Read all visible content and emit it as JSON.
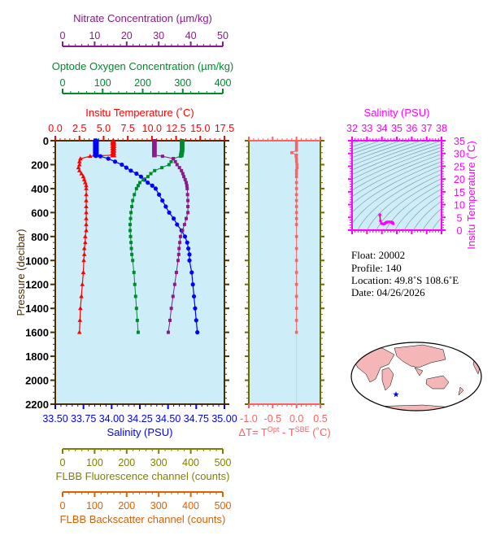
{
  "chart_data": [
    {
      "type": "line",
      "title": "",
      "ylabel": "Pressure (decibar)",
      "ylim": [
        0,
        2200
      ],
      "y_reversed": true,
      "yticks": [
        "0",
        "200",
        "400",
        "600",
        "800",
        "1000",
        "1200",
        "1400",
        "1600",
        "1800",
        "2000",
        "2200"
      ],
      "background": "#cdeef8",
      "pressure": [
        5,
        20,
        40,
        60,
        80,
        100,
        120,
        130,
        150,
        175,
        200,
        225,
        250,
        275,
        300,
        325,
        350,
        375,
        400,
        450,
        500,
        550,
        600,
        650,
        700,
        750,
        800,
        850,
        900,
        950,
        1000,
        1100,
        1200,
        1300,
        1400,
        1500,
        1600
      ],
      "axes": [
        {
          "key": "temp",
          "label": "Insitu Temperature (˚C)",
          "position": "top",
          "color": "#ff0000",
          "xlim": [
            0,
            17.5
          ],
          "ticks": [
            "0.0",
            "2.5",
            "5.0",
            "7.5",
            "10.0",
            "12.5",
            "15.0",
            "17.5"
          ]
        },
        {
          "key": "oxy",
          "label": "Optode Oxygen Concentration (µm/kg)",
          "position": "top-2",
          "color": "#008a2e",
          "xlim": [
            0,
            400
          ],
          "ticks": [
            "0",
            "100",
            "200",
            "300",
            "400"
          ]
        },
        {
          "key": "nit",
          "label": "Nitrate Concentration (µm/kg)",
          "position": "top-3",
          "color": "#8b1a8b",
          "xlim": [
            0,
            50
          ],
          "ticks": [
            "0",
            "10",
            "20",
            "30",
            "40",
            "50"
          ]
        },
        {
          "key": "sal",
          "label": "Salinity (PSU)",
          "position": "bottom",
          "color": "#0000ff",
          "xlim": [
            33.5,
            35.0
          ],
          "ticks": [
            "33.50",
            "33.75",
            "34.00",
            "34.25",
            "34.50",
            "34.75",
            "35.00"
          ]
        },
        {
          "key": "fluo",
          "label": "FLBB Fluorescence channel (counts)",
          "position": "bottom-2",
          "color": "#808000",
          "xlim": [
            0,
            500
          ],
          "ticks": [
            "0",
            "100",
            "200",
            "300",
            "400",
            "500"
          ]
        },
        {
          "key": "bsc",
          "label": "FLBB Backscatter channel (counts)",
          "position": "bottom-3",
          "color": "#e06000",
          "xlim": [
            0,
            500
          ],
          "ticks": [
            "0",
            "100",
            "200",
            "300",
            "400",
            "500"
          ]
        }
      ],
      "series": [
        {
          "key": "temp",
          "color": "#ff0000",
          "marker": "triangle",
          "values": [
            6.0,
            6.0,
            6.0,
            6.0,
            6.0,
            6.0,
            6.0,
            3.6,
            2.6,
            2.5,
            2.5,
            2.4,
            2.5,
            2.7,
            2.9,
            3.0,
            3.1,
            3.2,
            3.2,
            3.2,
            3.2,
            3.2,
            3.2,
            3.2,
            3.2,
            3.2,
            3.1,
            3.1,
            3.0,
            3.0,
            2.95,
            2.9,
            2.8,
            2.7,
            2.6,
            2.55,
            2.5
          ]
        },
        {
          "key": "sal",
          "color": "#0000ff",
          "marker": "circle",
          "values": [
            33.86,
            33.86,
            33.86,
            33.86,
            33.86,
            33.86,
            33.86,
            33.9,
            33.97,
            34.03,
            34.09,
            34.13,
            34.17,
            34.22,
            34.26,
            34.29,
            34.32,
            34.36,
            34.39,
            34.42,
            34.45,
            34.48,
            34.51,
            34.55,
            34.58,
            34.62,
            34.65,
            34.67,
            34.68,
            34.69,
            34.69,
            34.71,
            34.72,
            34.73,
            34.74,
            34.75,
            34.76
          ]
        },
        {
          "key": "oxy",
          "color": "#008a2e",
          "marker": "square",
          "values": [
            300,
            300,
            300,
            300,
            300,
            299,
            298,
            296,
            279,
            274,
            269,
            252,
            235,
            226,
            219,
            208,
            200,
            196,
            192,
            187,
            183,
            181,
            179,
            178,
            177,
            177,
            178,
            179,
            180,
            181,
            183,
            186,
            188,
            190,
            192,
            194,
            196
          ]
        },
        {
          "key": "nit",
          "color": "#8b1a8b",
          "marker": "square",
          "values": [
            29.3,
            29.3,
            29.3,
            29.3,
            29.3,
            29.3,
            29.3,
            31.7,
            34.9,
            35.5,
            36.0,
            36.7,
            37.3,
            37.7,
            38.0,
            38.4,
            38.7,
            38.9,
            39.0,
            39.1,
            39.2,
            39.2,
            39.2,
            38.7,
            38.2,
            37.6,
            37.0,
            36.8,
            36.6,
            36.5,
            36.3,
            35.8,
            35.3,
            34.8,
            34.3,
            33.9,
            33.4
          ]
        }
      ]
    },
    {
      "type": "line",
      "xlabel": "ΔT= T",
      "xlabel_sup1": "Opt",
      "xlabel_mid": " - T",
      "xlabel_sup2": "SBE",
      "xlabel_unit": " (˚C)",
      "color": "#ff6060",
      "xlim": [
        -1.0,
        0.5
      ],
      "ylim": [
        0,
        2200
      ],
      "xticks": [
        "-1.0",
        "-0.5",
        "0.0",
        "0.5"
      ],
      "pressure": [
        5,
        20,
        40,
        60,
        80,
        100,
        120,
        130,
        150,
        175,
        200,
        225,
        250,
        275,
        300,
        350,
        400,
        450,
        500,
        550,
        600,
        650,
        700,
        800,
        900,
        1000,
        1100,
        1200,
        1300,
        1400,
        1500,
        1600
      ],
      "values": [
        0.0,
        0.0,
        0.0,
        0.0,
        0.0,
        -0.1,
        0.0,
        -0.01,
        0.0,
        0.0,
        0.01,
        0.01,
        0.0,
        0.0,
        0.0,
        0.0,
        0.0,
        0.0,
        0.0,
        0.0,
        0.0,
        0.0,
        0.0,
        0.0,
        0.0,
        0.0,
        0.0,
        0.0,
        0.0,
        0.0,
        0.0,
        0.0
      ]
    },
    {
      "type": "scatter",
      "xlabel": "Salinity (PSU)",
      "ylabel": "Insitu Temperature (˚C)",
      "color": "#ff00ff",
      "xlim": [
        32,
        38
      ],
      "ylim": [
        0,
        35
      ],
      "xticks": [
        "32",
        "33",
        "34",
        "35",
        "36",
        "37",
        "38"
      ],
      "yticks": [
        "0",
        "5",
        "10",
        "15",
        "20",
        "25",
        "30",
        "35"
      ],
      "contours": "density"
    }
  ],
  "info": {
    "float": "Float:  20002",
    "profile": "Profile:  140",
    "location": "Location:  49.8˚S  108.6˚E",
    "date": "Date:  04/26/2026"
  },
  "map": {
    "land_color": "#f4b6b6",
    "ocean_color": "#ffffff",
    "marker_color": "#0000ff",
    "marker": "star-icon"
  }
}
